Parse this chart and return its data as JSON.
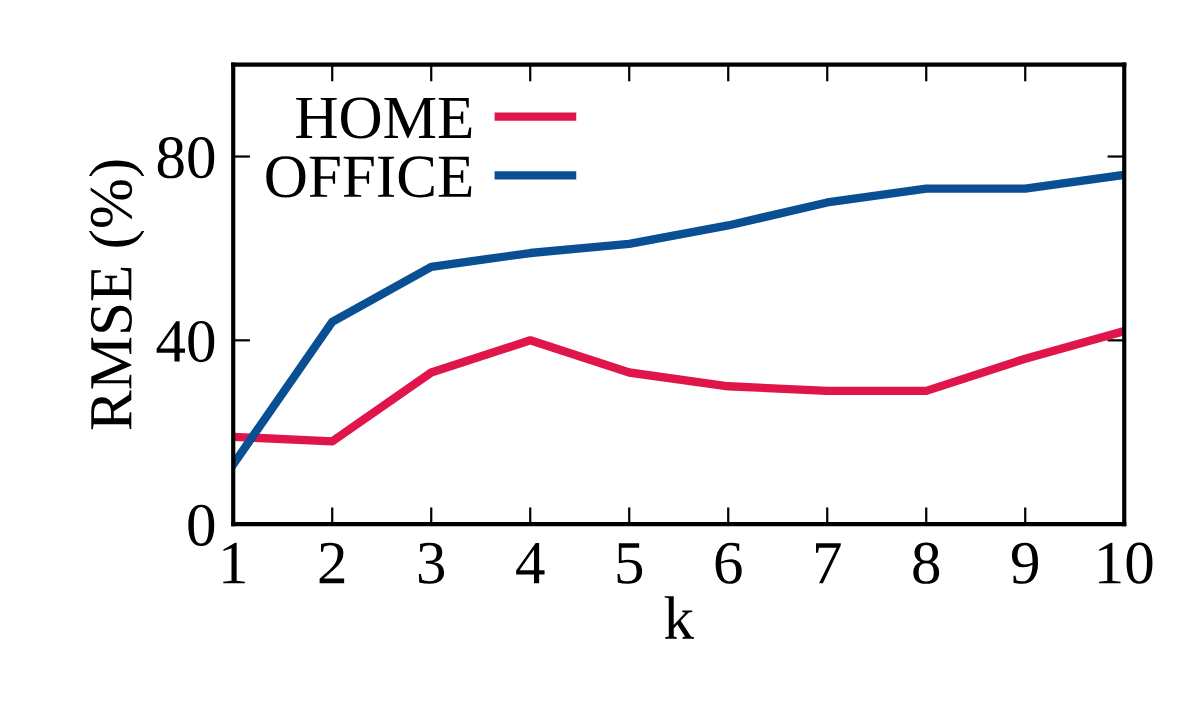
{
  "chart_data": {
    "type": "line",
    "xlabel": "k",
    "ylabel": "RMSE (%)",
    "x": [
      1,
      2,
      3,
      4,
      5,
      6,
      7,
      8,
      9,
      10
    ],
    "series": [
      {
        "name": "HOME",
        "color": "#e0164a",
        "values": [
          19,
          18,
          33,
          40,
          33,
          30,
          29,
          29,
          36,
          42
        ]
      },
      {
        "name": "OFFICE",
        "color": "#0a4f94",
        "values": [
          13,
          44,
          56,
          59,
          61,
          65,
          70,
          73,
          73,
          76
        ]
      }
    ],
    "xlim": [
      1,
      10
    ],
    "xticks": [
      1,
      2,
      3,
      4,
      5,
      6,
      7,
      8,
      9,
      10
    ],
    "ylim": [
      0,
      100
    ],
    "yticks": [
      0,
      40,
      80
    ],
    "grid": false,
    "legend": "top left",
    "marker": "none",
    "line_style": "solid"
  }
}
